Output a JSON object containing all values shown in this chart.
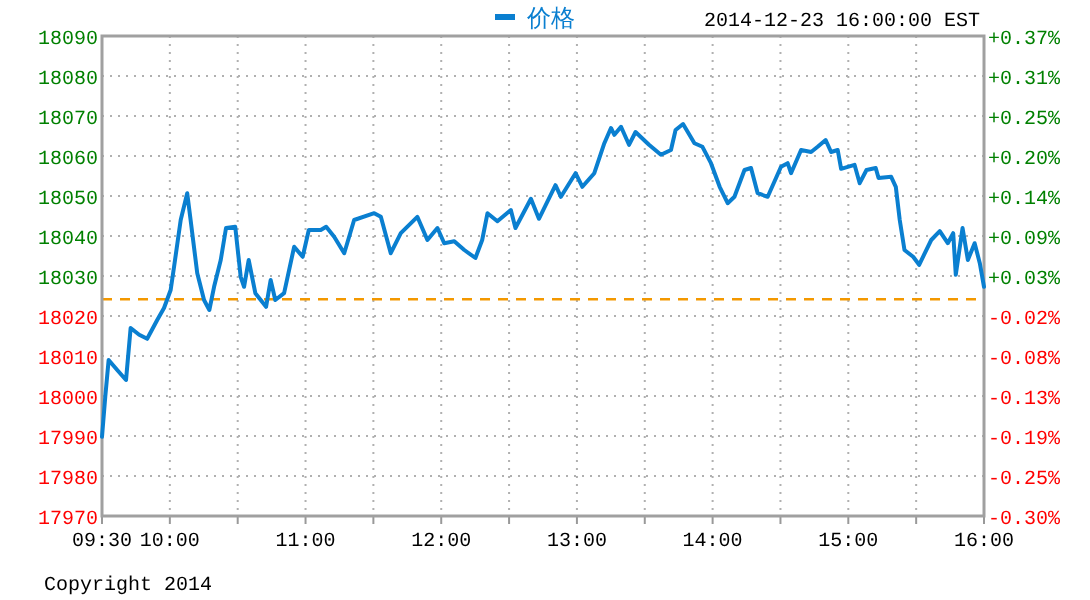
{
  "chart_data": {
    "type": "line",
    "subtitle": "2014-12-23 16:00:00 EST",
    "legend": "top",
    "grid": true,
    "marker": "none",
    "line_style": "solid",
    "x": [
      9.5,
      9.524,
      9.549,
      9.612,
      9.677,
      9.711,
      9.774,
      9.833,
      9.907,
      9.957,
      10.006,
      10.031,
      10.08,
      10.128,
      10.153,
      10.202,
      10.252,
      10.291,
      10.326,
      10.375,
      10.414,
      10.482,
      10.522,
      10.547,
      10.581,
      10.63,
      10.709,
      10.743,
      10.777,
      10.842,
      10.916,
      10.979,
      11.024,
      11.112,
      11.152,
      11.211,
      11.285,
      11.358,
      11.506,
      11.555,
      11.628,
      11.702,
      11.824,
      11.898,
      11.972,
      12.022,
      12.096,
      12.17,
      12.252,
      12.302,
      12.341,
      12.414,
      12.513,
      12.547,
      12.661,
      12.72,
      12.842,
      12.882,
      12.99,
      13.04,
      13.128,
      13.202,
      13.251,
      13.276,
      13.325,
      13.384,
      13.432,
      13.531,
      13.619,
      13.693,
      13.727,
      13.782,
      13.866,
      13.925,
      13.988,
      14.052,
      14.111,
      14.161,
      14.235,
      14.283,
      14.332,
      14.406,
      14.504,
      14.553,
      14.578,
      14.652,
      14.726,
      14.774,
      14.833,
      14.873,
      14.922,
      14.947,
      15.046,
      15.084,
      15.134,
      15.202,
      15.223,
      15.316,
      15.35,
      15.379,
      15.414,
      15.478,
      15.522,
      15.611,
      15.674,
      15.733,
      15.773,
      15.792,
      15.842,
      15.881,
      15.931,
      15.969,
      16.0
    ],
    "series": [
      {
        "name": "价格",
        "color": "#0a7fd0",
        "values": [
          17989.8,
          17999.8,
          18009,
          18006.5,
          18004,
          18017,
          18015.3,
          18014.3,
          18019,
          18022,
          18026.5,
          18032.3,
          18044,
          18050.7,
          18044,
          18030.7,
          18024,
          18021.5,
          18027.3,
          18034,
          18042,
          18042.3,
          18029.8,
          18027.3,
          18034,
          18025.7,
          18022.3,
          18029,
          18024,
          18025.7,
          18037.3,
          18034.8,
          18041.5,
          18041.5,
          18042.3,
          18039.8,
          18035.7,
          18044,
          18045.7,
          18044.8,
          18035.7,
          18040.7,
          18044.8,
          18039,
          18042,
          18038.2,
          18038.7,
          18036.5,
          18034.5,
          18039,
          18045.7,
          18043.7,
          18046.5,
          18042,
          18049.3,
          18044.3,
          18052.7,
          18049.8,
          18055.7,
          18052.3,
          18055.7,
          18063.2,
          18067,
          18065.3,
          18067.3,
          18062.8,
          18066,
          18062.8,
          18060.3,
          18061.5,
          18066.5,
          18068,
          18063.2,
          18062.3,
          18058.2,
          18052.3,
          18048.2,
          18049.8,
          18056.5,
          18057,
          18050.7,
          18049.8,
          18057.3,
          18058.2,
          18055.7,
          18061.5,
          18061,
          18062.3,
          18064,
          18061,
          18061.5,
          18056.8,
          18057.8,
          18053.2,
          18056.5,
          18057,
          18054.5,
          18054.8,
          18052.3,
          18044,
          18036.5,
          18034.8,
          18032.8,
          18039,
          18041.2,
          18038.2,
          18040.7,
          18030.3,
          18042,
          18034,
          18038.2,
          18033.2,
          18027.3
        ]
      }
    ],
    "xlim": [
      9.5,
      16
    ],
    "xticks": [
      {
        "value": 9.5,
        "label": "09:30"
      },
      {
        "value": 10,
        "label": "10:00"
      },
      {
        "value": 10.5,
        "label": null
      },
      {
        "value": 11,
        "label": "11:00"
      },
      {
        "value": 11.5,
        "label": null
      },
      {
        "value": 12,
        "label": "12:00"
      },
      {
        "value": 12.5,
        "label": null
      },
      {
        "value": 13,
        "label": "13:00"
      },
      {
        "value": 13.5,
        "label": null
      },
      {
        "value": 14,
        "label": "14:00"
      },
      {
        "value": 14.5,
        "label": null
      },
      {
        "value": 15,
        "label": "15:00"
      },
      {
        "value": 15.5,
        "label": null
      },
      {
        "value": 16,
        "label": "16:00"
      }
    ],
    "ylim": [
      17970,
      18090
    ],
    "yticks": [
      17970,
      17980,
      17990,
      18000,
      18010,
      18020,
      18030,
      18040,
      18050,
      18060,
      18070,
      18080,
      18090
    ],
    "y2lim": [
      -0.301,
      0.365
    ],
    "y2ticks": [
      {
        "value": -0.301,
        "label": "-0.30%"
      },
      {
        "value": -0.245,
        "label": "-0.25%"
      },
      {
        "value": -0.19,
        "label": "-0.19%"
      },
      {
        "value": -0.134,
        "label": "-0.13%"
      },
      {
        "value": -0.079,
        "label": "-0.08%"
      },
      {
        "value": -0.023,
        "label": "-0.02%"
      },
      {
        "value": 0.032,
        "label": "+0.03%"
      },
      {
        "value": 0.088,
        "label": "+0.09%"
      },
      {
        "value": 0.143,
        "label": "+0.14%"
      },
      {
        "value": 0.199,
        "label": "+0.20%"
      },
      {
        "value": 0.254,
        "label": "+0.25%"
      },
      {
        "value": 0.31,
        "label": "+0.31%"
      },
      {
        "value": 0.365,
        "label": "+0.37%"
      }
    ],
    "ref_lines": [
      {
        "axis": "y",
        "value": 18024.2,
        "color": "#f39800",
        "line_style": "dashed"
      }
    ],
    "annotations": [
      "Copyright 2014"
    ]
  }
}
